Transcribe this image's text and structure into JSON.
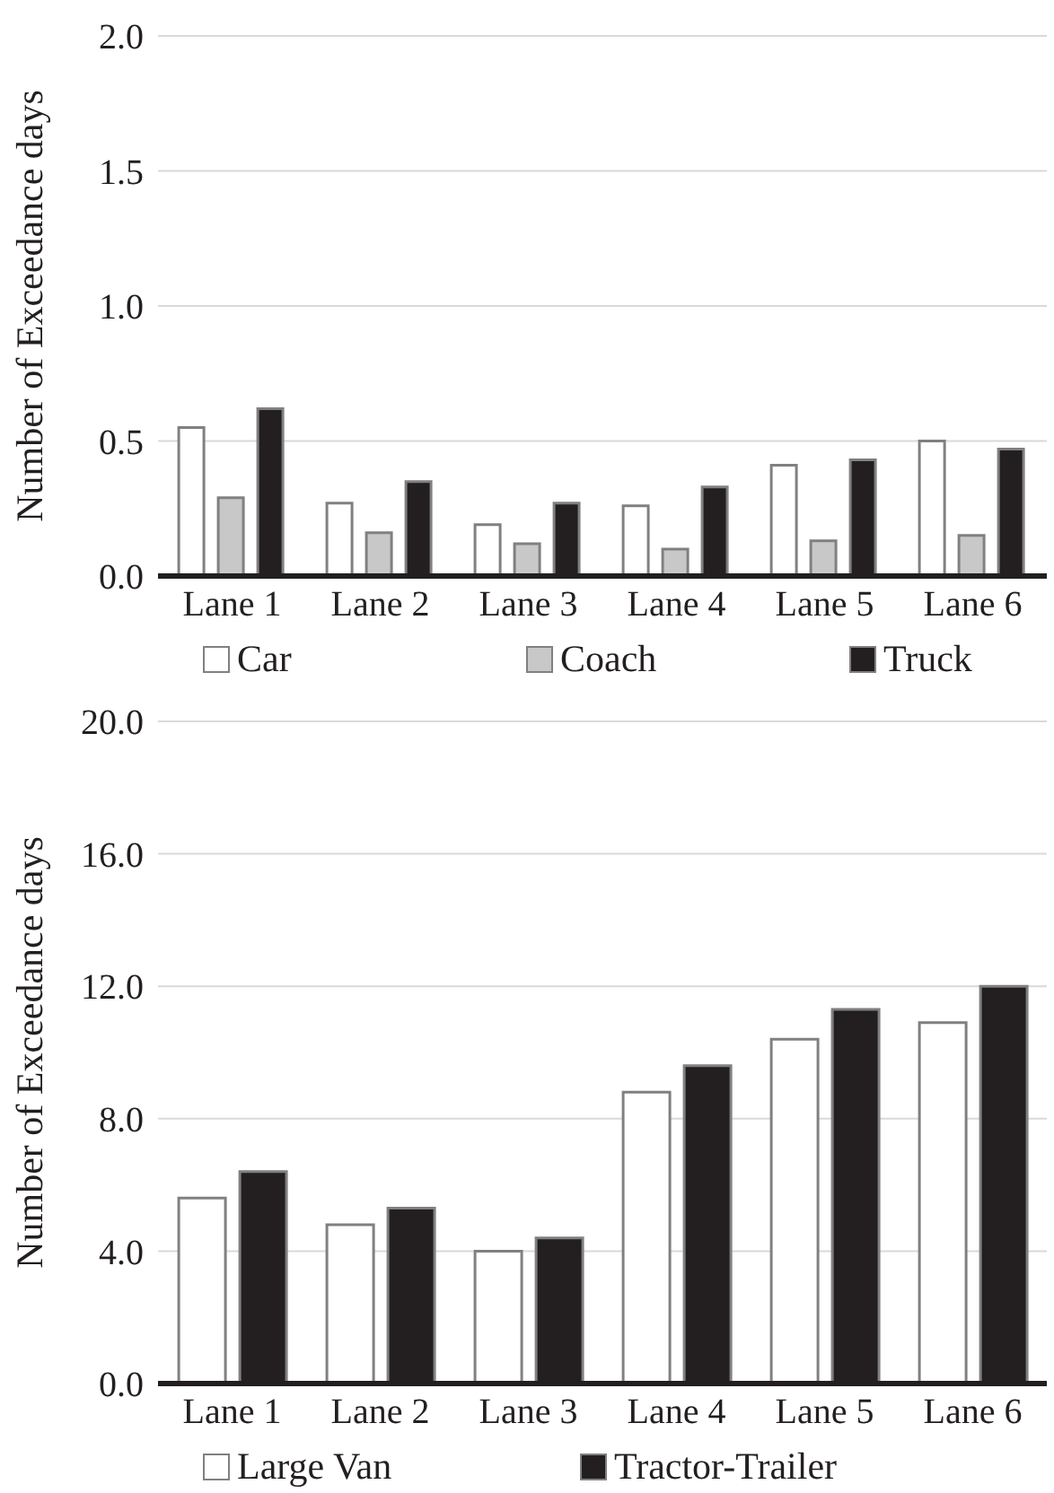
{
  "chart_data": [
    {
      "type": "bar",
      "ylabel": "Number of Exceedance days",
      "categories": [
        "Lane 1",
        "Lane 2",
        "Lane 3",
        "Lane 4",
        "Lane 5",
        "Lane 6"
      ],
      "series": [
        {
          "name": "Car",
          "color": "#ffffff",
          "values": [
            0.55,
            0.27,
            0.19,
            0.26,
            0.41,
            0.5
          ]
        },
        {
          "name": "Coach",
          "color": "#c8c8c8",
          "values": [
            0.29,
            0.16,
            0.12,
            0.1,
            0.13,
            0.15
          ]
        },
        {
          "name": "Truck",
          "color": "#231f20",
          "values": [
            0.62,
            0.35,
            0.27,
            0.33,
            0.43,
            0.47
          ]
        }
      ],
      "ylim": [
        0,
        2
      ],
      "yticks": [
        {
          "value": 0,
          "label": "0.0"
        },
        0.5,
        {
          "value": 1,
          "label": "1.0"
        },
        1.5,
        {
          "value": 2,
          "label": "2.0"
        }
      ],
      "grid": "y",
      "legend": "bottom"
    },
    {
      "type": "bar",
      "ylabel": "Number of Exceedance days",
      "categories": [
        "Lane 1",
        "Lane 2",
        "Lane 3",
        "Lane 4",
        "Lane 5",
        "Lane 6"
      ],
      "series": [
        {
          "name": "Large Van",
          "color": "#ffffff",
          "values": [
            5.6,
            4.8,
            4.0,
            8.8,
            10.4,
            10.9
          ]
        },
        {
          "name": "Tractor-Trailer",
          "color": "#231f20",
          "values": [
            6.4,
            5.3,
            4.4,
            9.6,
            11.3,
            12.0
          ]
        }
      ],
      "ylim": [
        0,
        20
      ],
      "yticks": [
        {
          "value": 0,
          "label": "0.0"
        },
        {
          "value": 4,
          "label": "4.0"
        },
        {
          "value": 8,
          "label": "8.0"
        },
        {
          "value": 12,
          "label": "12.0"
        },
        {
          "value": 16,
          "label": "16.0"
        },
        {
          "value": 20,
          "label": "20.0"
        }
      ],
      "grid": "y",
      "legend": "bottom"
    }
  ]
}
